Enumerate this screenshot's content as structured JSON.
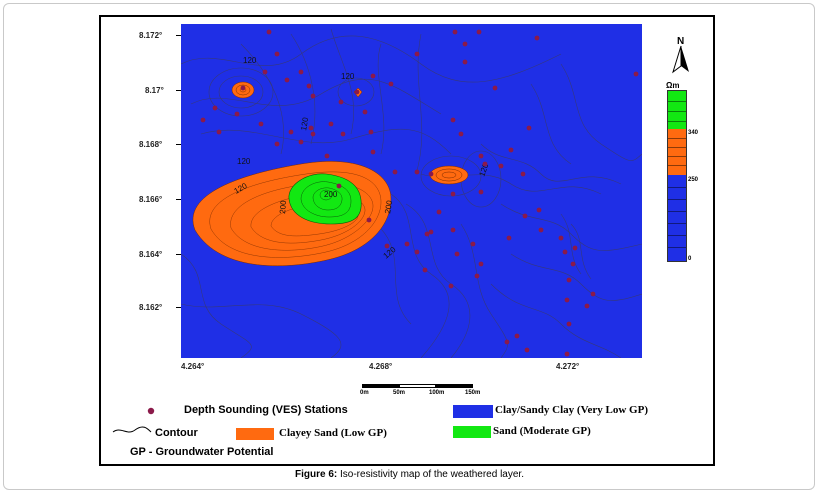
{
  "map": {
    "latitude_labels": [
      "8.172°",
      "8.17°",
      "8.168°",
      "8.166°",
      "8.164°",
      "8.162°"
    ],
    "longitude_labels": [
      "4.264°",
      "4.268°",
      "4.272°"
    ],
    "contour_labels": [
      "120",
      "120",
      "120",
      "120",
      "120",
      "120",
      "200",
      "200",
      "200",
      "120"
    ],
    "north_arrow_label": "N",
    "colors": {
      "very_low": "#1f2fe6",
      "low": "#ff6a10",
      "moderate": "#12e812",
      "station": "#8b1a4a",
      "contour": "#333366"
    }
  },
  "scale": {
    "labels": [
      "0m",
      "50m",
      "100m",
      "150m"
    ]
  },
  "color_bar": {
    "unit": "Ωm",
    "ticks": [
      "340",
      "250",
      "0"
    ]
  },
  "legend": {
    "stations": "Depth Sounding (VES) Stations",
    "contour": "Contour",
    "clay": "Clay/Sandy Clay (Very Low GP)",
    "clayey_sand": "Clayey Sand (Low GP)",
    "sand": "Sand (Moderate GP)",
    "gp_note": "GP - Groundwater Potential"
  },
  "caption": {
    "label": "Figure 6:",
    "text": " Iso-resistivity map of the weathered layer."
  }
}
